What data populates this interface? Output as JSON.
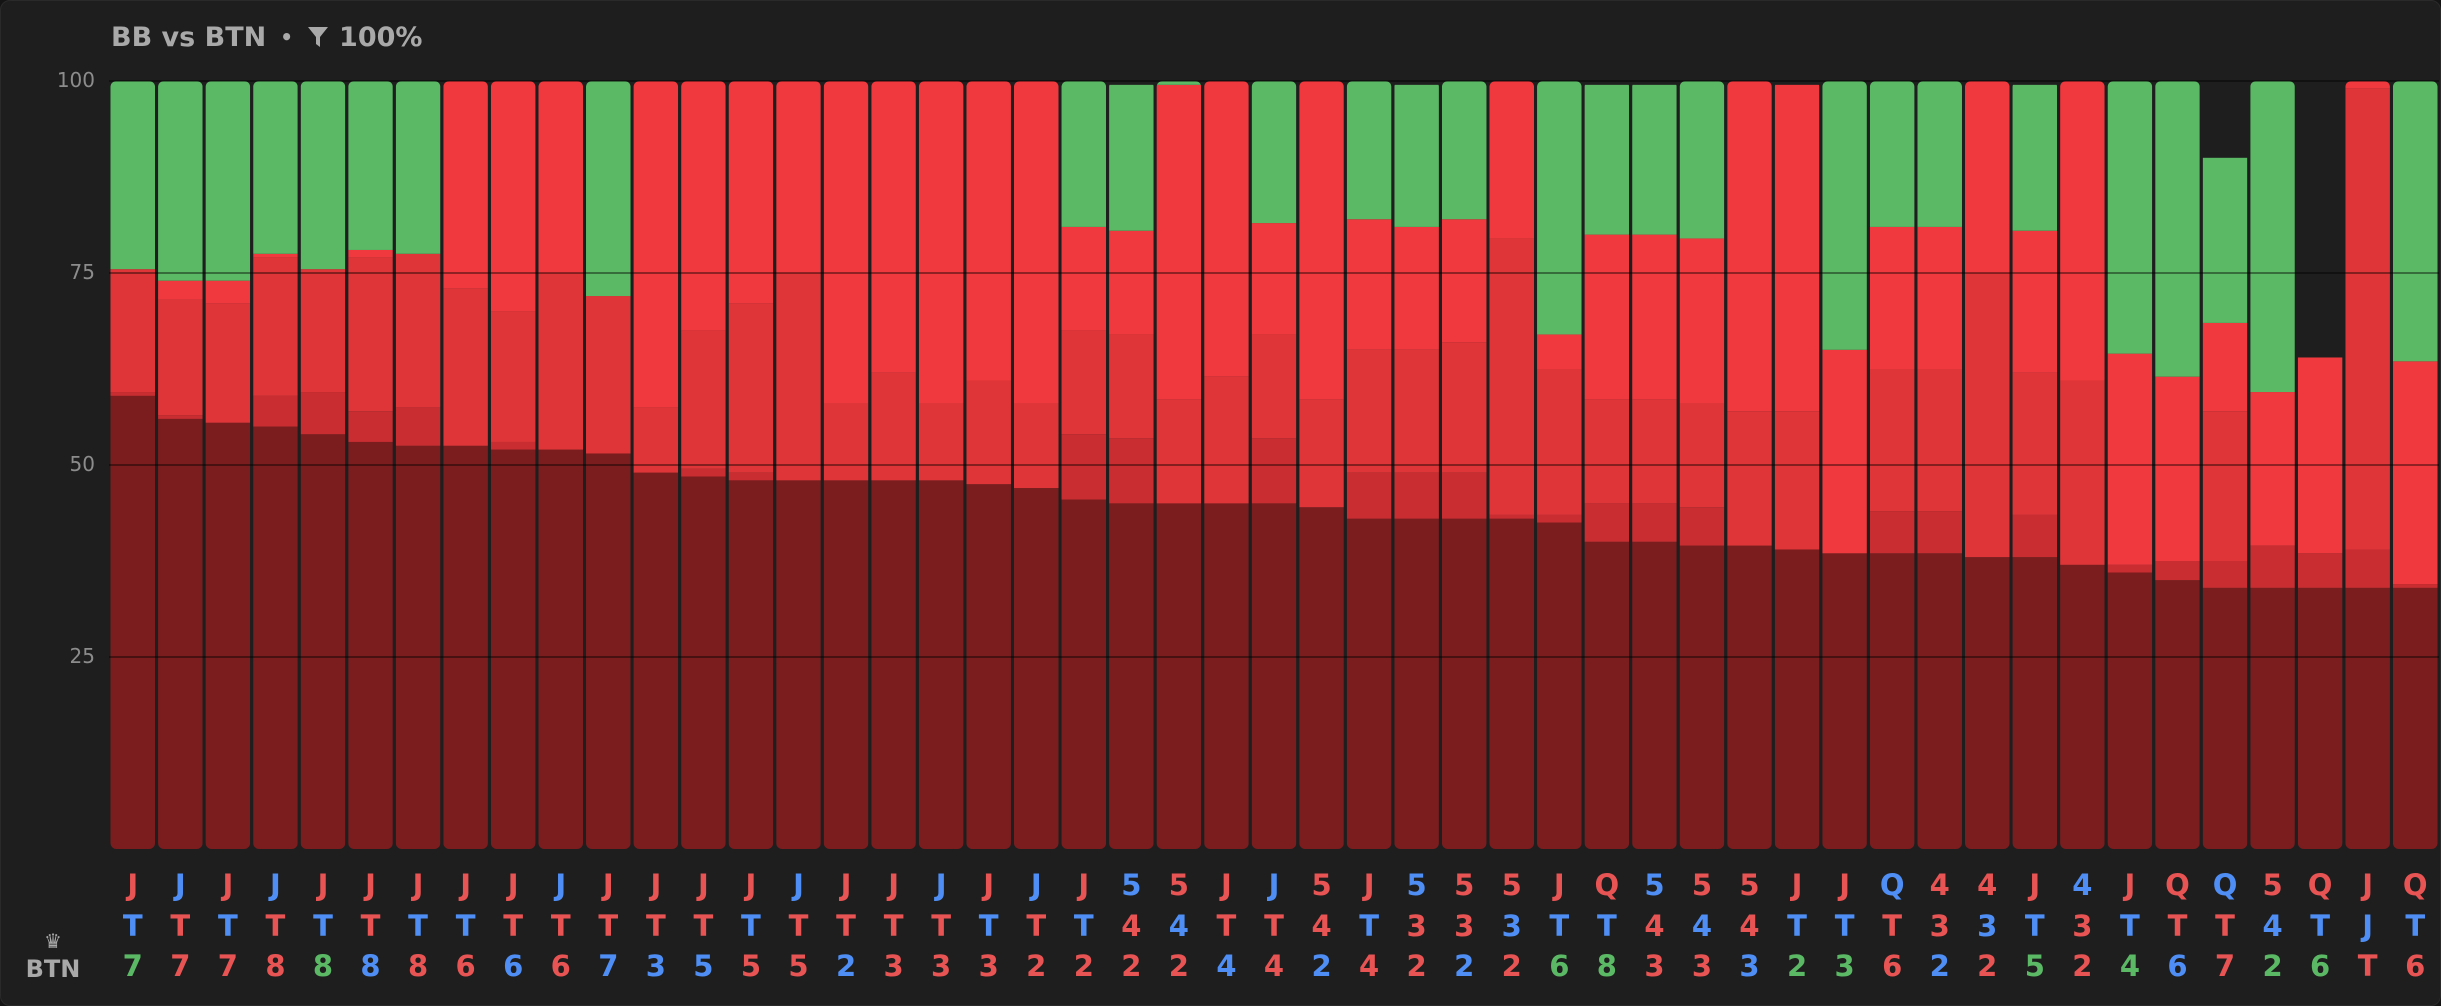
{
  "header": {
    "title": "BB vs BTN",
    "separator": "•",
    "filter_pct": "100%"
  },
  "footer": {
    "position_label": "BTN"
  },
  "colors": {
    "background": "#1e1e1e",
    "green": "#5bb966",
    "red_bright": "#f0393e",
    "red": "#e03538",
    "red_mid": "#c92d31",
    "red_dark": "#7b1d1e",
    "card_red": "#e85454",
    "card_blue": "#4f8ff5",
    "card_green": "#5bb966"
  },
  "chart_data": {
    "type": "bar",
    "stacked": true,
    "ylim": [
      0,
      100
    ],
    "yticks": [
      "100",
      "75",
      "50",
      "25"
    ],
    "grid": true,
    "categories": [
      {
        "cards": [
          [
            "J",
            "r"
          ],
          [
            "T",
            "b"
          ],
          [
            "7",
            "g"
          ]
        ]
      },
      {
        "cards": [
          [
            "J",
            "b"
          ],
          [
            "T",
            "r"
          ],
          [
            "7",
            "r"
          ]
        ]
      },
      {
        "cards": [
          [
            "J",
            "r"
          ],
          [
            "T",
            "b"
          ],
          [
            "7",
            "r"
          ]
        ]
      },
      {
        "cards": [
          [
            "J",
            "b"
          ],
          [
            "T",
            "r"
          ],
          [
            "8",
            "r"
          ]
        ]
      },
      {
        "cards": [
          [
            "J",
            "r"
          ],
          [
            "T",
            "b"
          ],
          [
            "8",
            "g"
          ]
        ]
      },
      {
        "cards": [
          [
            "J",
            "r"
          ],
          [
            "T",
            "r"
          ],
          [
            "8",
            "b"
          ]
        ]
      },
      {
        "cards": [
          [
            "J",
            "r"
          ],
          [
            "T",
            "b"
          ],
          [
            "8",
            "r"
          ]
        ]
      },
      {
        "cards": [
          [
            "J",
            "r"
          ],
          [
            "T",
            "b"
          ],
          [
            "6",
            "r"
          ]
        ]
      },
      {
        "cards": [
          [
            "J",
            "r"
          ],
          [
            "T",
            "r"
          ],
          [
            "6",
            "b"
          ]
        ]
      },
      {
        "cards": [
          [
            "J",
            "b"
          ],
          [
            "T",
            "r"
          ],
          [
            "6",
            "r"
          ]
        ]
      },
      {
        "cards": [
          [
            "J",
            "r"
          ],
          [
            "T",
            "r"
          ],
          [
            "7",
            "b"
          ]
        ]
      },
      {
        "cards": [
          [
            "J",
            "r"
          ],
          [
            "T",
            "r"
          ],
          [
            "3",
            "b"
          ]
        ]
      },
      {
        "cards": [
          [
            "J",
            "r"
          ],
          [
            "T",
            "r"
          ],
          [
            "5",
            "b"
          ]
        ]
      },
      {
        "cards": [
          [
            "J",
            "r"
          ],
          [
            "T",
            "b"
          ],
          [
            "5",
            "r"
          ]
        ]
      },
      {
        "cards": [
          [
            "J",
            "b"
          ],
          [
            "T",
            "r"
          ],
          [
            "5",
            "r"
          ]
        ]
      },
      {
        "cards": [
          [
            "J",
            "r"
          ],
          [
            "T",
            "r"
          ],
          [
            "2",
            "b"
          ]
        ]
      },
      {
        "cards": [
          [
            "J",
            "r"
          ],
          [
            "T",
            "r"
          ],
          [
            "3",
            "r"
          ]
        ]
      },
      {
        "cards": [
          [
            "J",
            "b"
          ],
          [
            "T",
            "r"
          ],
          [
            "3",
            "r"
          ]
        ]
      },
      {
        "cards": [
          [
            "J",
            "r"
          ],
          [
            "T",
            "b"
          ],
          [
            "3",
            "r"
          ]
        ]
      },
      {
        "cards": [
          [
            "J",
            "b"
          ],
          [
            "T",
            "r"
          ],
          [
            "2",
            "r"
          ]
        ]
      },
      {
        "cards": [
          [
            "J",
            "r"
          ],
          [
            "T",
            "b"
          ],
          [
            "2",
            "r"
          ]
        ]
      },
      {
        "cards": [
          [
            "5",
            "b"
          ],
          [
            "4",
            "r"
          ],
          [
            "2",
            "r"
          ]
        ]
      },
      {
        "cards": [
          [
            "5",
            "r"
          ],
          [
            "4",
            "b"
          ],
          [
            "2",
            "r"
          ]
        ]
      },
      {
        "cards": [
          [
            "J",
            "r"
          ],
          [
            "T",
            "r"
          ],
          [
            "4",
            "b"
          ]
        ]
      },
      {
        "cards": [
          [
            "J",
            "b"
          ],
          [
            "T",
            "r"
          ],
          [
            "4",
            "r"
          ]
        ]
      },
      {
        "cards": [
          [
            "5",
            "r"
          ],
          [
            "4",
            "r"
          ],
          [
            "2",
            "b"
          ]
        ]
      },
      {
        "cards": [
          [
            "J",
            "r"
          ],
          [
            "T",
            "b"
          ],
          [
            "4",
            "r"
          ]
        ]
      },
      {
        "cards": [
          [
            "5",
            "b"
          ],
          [
            "3",
            "r"
          ],
          [
            "2",
            "r"
          ]
        ]
      },
      {
        "cards": [
          [
            "5",
            "r"
          ],
          [
            "3",
            "r"
          ],
          [
            "2",
            "b"
          ]
        ]
      },
      {
        "cards": [
          [
            "5",
            "r"
          ],
          [
            "3",
            "b"
          ],
          [
            "2",
            "r"
          ]
        ]
      },
      {
        "cards": [
          [
            "J",
            "r"
          ],
          [
            "T",
            "b"
          ],
          [
            "6",
            "g"
          ]
        ]
      },
      {
        "cards": [
          [
            "Q",
            "r"
          ],
          [
            "T",
            "b"
          ],
          [
            "8",
            "g"
          ]
        ]
      },
      {
        "cards": [
          [
            "5",
            "b"
          ],
          [
            "4",
            "r"
          ],
          [
            "3",
            "r"
          ]
        ]
      },
      {
        "cards": [
          [
            "5",
            "r"
          ],
          [
            "4",
            "b"
          ],
          [
            "3",
            "r"
          ]
        ]
      },
      {
        "cards": [
          [
            "5",
            "r"
          ],
          [
            "4",
            "r"
          ],
          [
            "3",
            "b"
          ]
        ]
      },
      {
        "cards": [
          [
            "J",
            "r"
          ],
          [
            "T",
            "b"
          ],
          [
            "2",
            "g"
          ]
        ]
      },
      {
        "cards": [
          [
            "J",
            "r"
          ],
          [
            "T",
            "b"
          ],
          [
            "3",
            "g"
          ]
        ]
      },
      {
        "cards": [
          [
            "Q",
            "b"
          ],
          [
            "T",
            "r"
          ],
          [
            "6",
            "r"
          ]
        ]
      },
      {
        "cards": [
          [
            "4",
            "r"
          ],
          [
            "3",
            "r"
          ],
          [
            "2",
            "b"
          ]
        ]
      },
      {
        "cards": [
          [
            "4",
            "r"
          ],
          [
            "3",
            "b"
          ],
          [
            "2",
            "r"
          ]
        ]
      },
      {
        "cards": [
          [
            "J",
            "r"
          ],
          [
            "T",
            "b"
          ],
          [
            "5",
            "g"
          ]
        ]
      },
      {
        "cards": [
          [
            "4",
            "b"
          ],
          [
            "3",
            "r"
          ],
          [
            "2",
            "r"
          ]
        ]
      },
      {
        "cards": [
          [
            "J",
            "r"
          ],
          [
            "T",
            "b"
          ],
          [
            "4",
            "g"
          ]
        ]
      },
      {
        "cards": [
          [
            "Q",
            "r"
          ],
          [
            "T",
            "r"
          ],
          [
            "6",
            "b"
          ]
        ]
      },
      {
        "cards": [
          [
            "Q",
            "b"
          ],
          [
            "T",
            "r"
          ],
          [
            "7",
            "r"
          ]
        ]
      },
      {
        "cards": [
          [
            "5",
            "r"
          ],
          [
            "4",
            "b"
          ],
          [
            "2",
            "g"
          ]
        ]
      },
      {
        "cards": [
          [
            "Q",
            "r"
          ],
          [
            "T",
            "b"
          ],
          [
            "6",
            "g"
          ]
        ]
      },
      {
        "cards": [
          [
            "J",
            "r"
          ],
          [
            "J",
            "b"
          ],
          [
            "T",
            "r"
          ]
        ]
      },
      {
        "cards": [
          [
            "Q",
            "r"
          ],
          [
            "T",
            "b"
          ],
          [
            "6",
            "r"
          ]
        ]
      }
    ],
    "series": [
      {
        "color_key": "red_dark",
        "values": [
          59,
          56,
          55.5,
          55,
          54,
          53,
          52.5,
          52.5,
          52,
          52,
          51.5,
          49,
          48.5,
          48,
          48,
          48,
          48,
          48,
          47.5,
          47,
          45.5,
          45,
          45,
          45,
          45,
          44.5,
          43,
          43,
          43,
          43,
          42.5,
          40,
          40,
          39.5,
          39.5,
          39,
          38.5,
          38.5,
          38.5,
          38,
          38,
          37,
          36,
          35,
          34,
          34,
          34,
          34,
          34
        ]
      },
      {
        "color_key": "red_mid",
        "values": [
          0.5,
          0.5,
          0,
          4,
          5.5,
          4,
          5,
          0,
          1,
          0,
          0,
          0,
          1,
          1,
          0,
          0,
          0,
          0,
          0,
          0,
          8.5,
          8.5,
          0,
          0,
          8.5,
          0,
          6,
          6,
          6,
          0.5,
          1,
          5,
          5,
          5,
          0,
          0,
          0,
          5.5,
          5.5,
          0,
          5.5,
          0,
          1,
          2.5,
          3.5,
          5.5,
          4.5,
          5,
          0.5
        ]
      },
      {
        "color_key": "red",
        "values": [
          16,
          15,
          15.5,
          18,
          16,
          20,
          20,
          20.5,
          17,
          23,
          20.5,
          8.5,
          18,
          22,
          27,
          10,
          14,
          10,
          13.5,
          11,
          13.5,
          13.5,
          13.5,
          16.5,
          13.5,
          14,
          16,
          16,
          17,
          36,
          19,
          13.5,
          13.5,
          13.5,
          17.5,
          18,
          0,
          18.5,
          18.5,
          37,
          18.5,
          24,
          0,
          0,
          19.5,
          0,
          0,
          60,
          0
        ]
      },
      {
        "color_key": "red_bright",
        "values": [
          0,
          2.5,
          3,
          0.5,
          0,
          1,
          0,
          27,
          30,
          25,
          0,
          42.5,
          32.5,
          29,
          25,
          42,
          38,
          42,
          39,
          42,
          13.5,
          13.5,
          41,
          38.5,
          14.5,
          41.5,
          17,
          16,
          16,
          21.5,
          4.5,
          21.5,
          21.5,
          21.5,
          43,
          42.5,
          26.5,
          18.5,
          18.5,
          25,
          18.5,
          39,
          27.5,
          24,
          11.5,
          20,
          25.5,
          1,
          29
        ]
      },
      {
        "color_key": "green",
        "values": [
          24.5,
          26,
          26,
          22.5,
          24.5,
          22,
          22.5,
          0,
          0,
          0,
          28,
          0,
          0,
          0,
          0,
          0,
          0,
          0,
          0,
          0,
          19,
          19,
          0.5,
          0,
          18.5,
          0,
          18,
          18.5,
          18,
          0,
          33,
          19.5,
          19.5,
          20.5,
          0,
          0,
          35,
          19,
          19,
          0,
          19,
          0.5,
          35.5,
          38.5,
          21.5,
          40.5,
          0,
          0,
          37
        ]
      }
    ]
  }
}
